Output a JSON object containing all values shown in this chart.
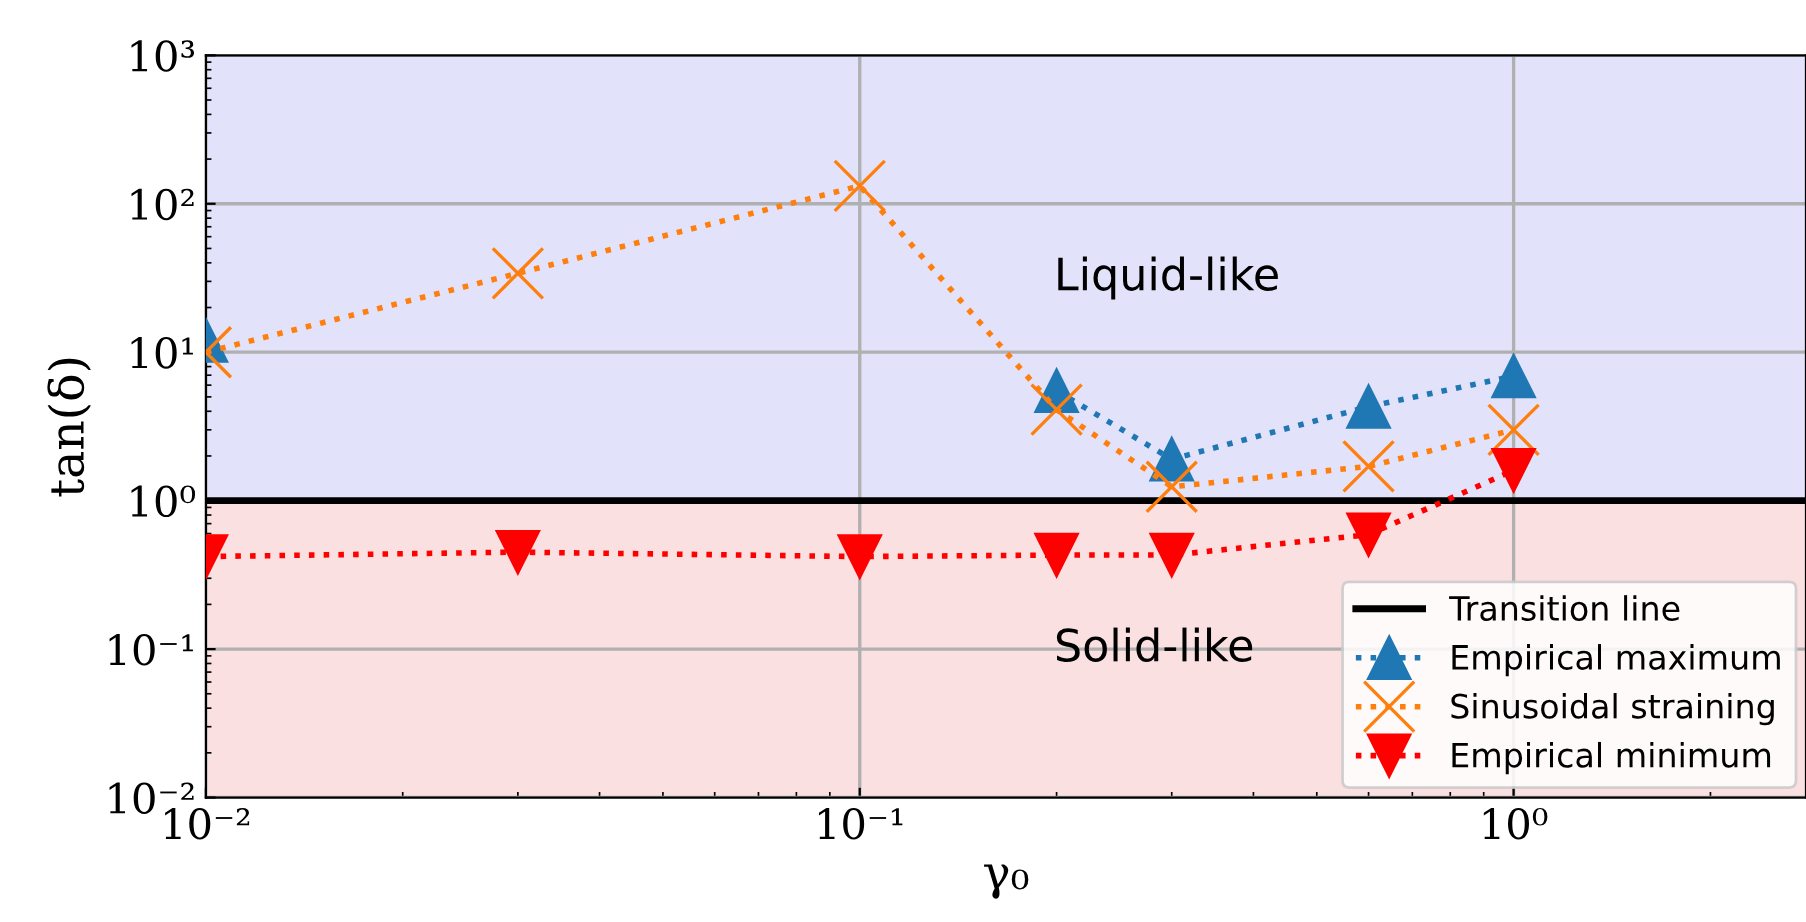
{
  "chart_data": {
    "type": "line",
    "xlabel": "γ₀",
    "ylabel": "tan(δ)",
    "log": "xy",
    "grid": true,
    "legend": "bottom right",
    "line_style": "dotted",
    "xlim": [
      0.01,
      2.8
    ],
    "ylim": [
      0.01,
      1000
    ],
    "xticks": [
      {
        "value": 0.01,
        "label": "10⁻²"
      },
      {
        "value": 0.1,
        "label": "10⁻¹"
      },
      {
        "value": 1,
        "label": "10⁰"
      }
    ],
    "yticks": [
      {
        "value": 0.01,
        "label": "10⁻²"
      },
      {
        "value": 0.1,
        "label": "10⁻¹"
      },
      {
        "value": 1,
        "label": "10⁰"
      },
      {
        "value": 10,
        "label": "10¹"
      },
      {
        "value": 100,
        "label": "10²"
      },
      {
        "value": 1000,
        "label": "10³"
      }
    ],
    "x": [
      0.01,
      0.03,
      0.1,
      0.2,
      0.3,
      0.6,
      1.0
    ],
    "series": [
      {
        "name": "Empirical maximum",
        "color": "#1f77b4",
        "marker": "triangle",
        "values": [
          12,
          null,
          null,
          5.5,
          1.9,
          4.3,
          6.9
        ]
      },
      {
        "name": "Sinusoidal straining",
        "color": "#ff7f0e",
        "marker": "cross",
        "values": [
          10,
          34,
          132,
          4.1,
          1.24,
          1.7,
          3.0
        ]
      },
      {
        "name": "Empirical minimum",
        "color": "#ff0000",
        "marker": "triangle_down",
        "values": [
          0.42,
          0.45,
          0.42,
          0.43,
          0.43,
          0.59,
          1.6
        ]
      }
    ],
    "ref_lines": [
      {
        "axis": "y",
        "value": 1,
        "label": "Transition line",
        "color": "#000000"
      }
    ],
    "bands": [
      {
        "axis": "y",
        "from": 1,
        "to": 1000,
        "label": "Liquid-like",
        "color": "#e2e2fa"
      },
      {
        "axis": "y",
        "from": 0.01,
        "to": 1,
        "label": "Solid-like",
        "color": "#fbe0e2"
      }
    ]
  }
}
